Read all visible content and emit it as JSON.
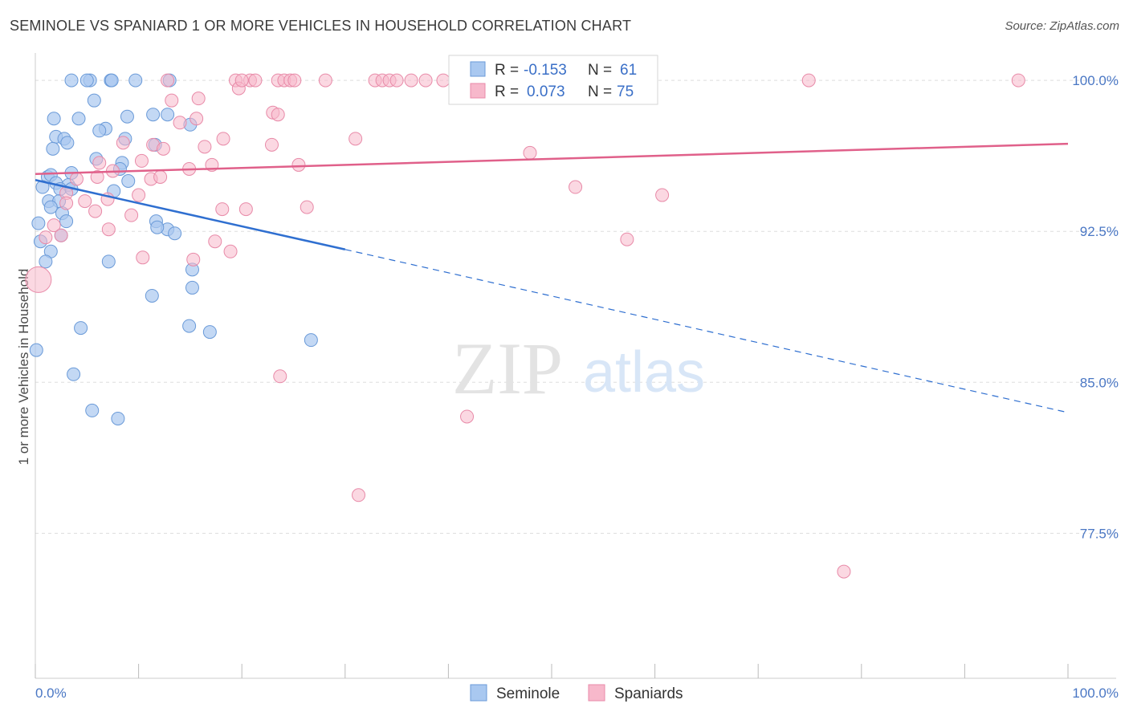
{
  "title": "SEMINOLE VS SPANIARD 1 OR MORE VEHICLES IN HOUSEHOLD CORRELATION CHART",
  "source": "Source: ZipAtlas.com",
  "watermark": {
    "zip": "ZIP",
    "atlas": "atlas"
  },
  "colors": {
    "seminole_fill": "#a9c8f0",
    "seminole_stroke": "#6a9ad8",
    "seminole_line": "#2f6fd0",
    "spaniard_fill": "#f7b8cb",
    "spaniard_stroke": "#e88aa8",
    "spaniard_line": "#e0608a",
    "tick_text": "#4a77c4",
    "grid": "#dddddd"
  },
  "legend": {
    "r_label": "R =",
    "n_label": "N =",
    "rows": [
      {
        "series": "Seminole",
        "r": "-0.153",
        "n": "61"
      },
      {
        "series": "Spaniards",
        "r": "0.073",
        "n": "75"
      }
    ]
  },
  "bottom_legend": [
    "Seminole",
    "Spaniards"
  ],
  "chart_data": {
    "type": "scatter",
    "title": "SEMINOLE VS SPANIARD 1 OR MORE VEHICLES IN HOUSEHOLD CORRELATION CHART",
    "xlabel": "",
    "ylabel": "1 or more Vehicles in Household",
    "xlim": [
      0,
      100
    ],
    "ylim": [
      70.3,
      101.2
    ],
    "x_tick_labels": [
      "0.0%",
      "100.0%"
    ],
    "y_ticks": [
      77.5,
      85.0,
      92.5,
      100.0
    ],
    "y_tick_labels": [
      "77.5%",
      "85.0%",
      "92.5%",
      "100.0%"
    ],
    "series": [
      {
        "name": "Seminole",
        "points": [
          [
            3.5,
            100
          ],
          [
            5.3,
            100
          ],
          [
            5.0,
            100
          ],
          [
            7.3,
            100
          ],
          [
            7.4,
            100
          ],
          [
            9.7,
            100
          ],
          [
            13.0,
            100
          ],
          [
            5.7,
            99.0
          ],
          [
            1.8,
            98.1
          ],
          [
            4.2,
            98.1
          ],
          [
            6.8,
            97.6
          ],
          [
            8.9,
            98.2
          ],
          [
            11.4,
            98.3
          ],
          [
            12.8,
            98.3
          ],
          [
            15.0,
            97.8
          ],
          [
            2.0,
            97.2
          ],
          [
            2.8,
            97.1
          ],
          [
            3.1,
            96.9
          ],
          [
            1.7,
            96.6
          ],
          [
            6.2,
            97.5
          ],
          [
            8.7,
            97.1
          ],
          [
            11.6,
            96.8
          ],
          [
            5.9,
            96.1
          ],
          [
            8.4,
            95.9
          ],
          [
            8.2,
            95.6
          ],
          [
            1.2,
            95.2
          ],
          [
            1.5,
            95.3
          ],
          [
            3.5,
            95.4
          ],
          [
            3.2,
            94.8
          ],
          [
            7.6,
            94.5
          ],
          [
            2.0,
            94.9
          ],
          [
            0.7,
            94.7
          ],
          [
            1.3,
            94.0
          ],
          [
            2.4,
            94.6
          ],
          [
            2.3,
            94.0
          ],
          [
            3.5,
            94.6
          ],
          [
            1.5,
            93.7
          ],
          [
            2.6,
            93.4
          ],
          [
            0.3,
            92.9
          ],
          [
            11.7,
            93.0
          ],
          [
            12.8,
            92.6
          ],
          [
            2.5,
            92.3
          ],
          [
            13.5,
            92.4
          ],
          [
            1.5,
            91.5
          ],
          [
            1.0,
            91.0
          ],
          [
            7.1,
            91.0
          ],
          [
            15.2,
            90.6
          ],
          [
            15.2,
            89.7
          ],
          [
            11.3,
            89.3
          ],
          [
            4.4,
            87.7
          ],
          [
            14.9,
            87.8
          ],
          [
            16.9,
            87.5
          ],
          [
            26.7,
            87.1
          ],
          [
            0.1,
            86.6
          ],
          [
            3.7,
            85.4
          ],
          [
            5.5,
            83.6
          ],
          [
            8.0,
            83.2
          ],
          [
            11.8,
            92.7
          ],
          [
            9.0,
            95.0
          ],
          [
            3.0,
            93.0
          ],
          [
            0.5,
            92.0
          ]
        ],
        "trend": {
          "x0": 0,
          "y0": 95.05,
          "x1_solid": 30,
          "y1_solid": 91.6,
          "x1_dash": 100,
          "y1_dash": 83.5
        }
      },
      {
        "name": "Spaniards",
        "points": [
          [
            12.8,
            100
          ],
          [
            19.4,
            100
          ],
          [
            20.8,
            100
          ],
          [
            21.3,
            100
          ],
          [
            23.5,
            100
          ],
          [
            24.1,
            100
          ],
          [
            24.7,
            100
          ],
          [
            25.1,
            100
          ],
          [
            28.1,
            100
          ],
          [
            32.9,
            100
          ],
          [
            33.6,
            100
          ],
          [
            34.3,
            100
          ],
          [
            36.4,
            100
          ],
          [
            37.8,
            100
          ],
          [
            39.5,
            100
          ],
          [
            41.2,
            100
          ],
          [
            42.8,
            100
          ],
          [
            48.6,
            100
          ],
          [
            55.0,
            100
          ],
          [
            58.9,
            100
          ],
          [
            74.9,
            100
          ],
          [
            95.2,
            100
          ],
          [
            19.7,
            99.6
          ],
          [
            13.2,
            99.0
          ],
          [
            15.8,
            99.1
          ],
          [
            23.0,
            98.4
          ],
          [
            23.5,
            98.3
          ],
          [
            14.0,
            97.9
          ],
          [
            15.6,
            98.1
          ],
          [
            18.2,
            97.1
          ],
          [
            31.0,
            97.1
          ],
          [
            8.5,
            96.9
          ],
          [
            11.4,
            96.8
          ],
          [
            12.4,
            96.6
          ],
          [
            16.4,
            96.7
          ],
          [
            22.9,
            96.8
          ],
          [
            47.9,
            96.4
          ],
          [
            6.2,
            95.9
          ],
          [
            10.3,
            96.0
          ],
          [
            14.9,
            95.6
          ],
          [
            17.1,
            95.8
          ],
          [
            25.5,
            95.8
          ],
          [
            6.0,
            95.2
          ],
          [
            7.5,
            95.5
          ],
          [
            11.2,
            95.1
          ],
          [
            12.1,
            95.2
          ],
          [
            4.0,
            95.1
          ],
          [
            3.0,
            94.4
          ],
          [
            10.0,
            94.3
          ],
          [
            52.3,
            94.7
          ],
          [
            60.7,
            94.3
          ],
          [
            4.8,
            94.0
          ],
          [
            5.8,
            93.5
          ],
          [
            7.0,
            94.1
          ],
          [
            18.1,
            93.6
          ],
          [
            20.4,
            93.6
          ],
          [
            26.3,
            93.7
          ],
          [
            9.3,
            93.3
          ],
          [
            1.8,
            92.8
          ],
          [
            7.1,
            92.6
          ],
          [
            2.5,
            92.3
          ],
          [
            1.0,
            92.2
          ],
          [
            17.4,
            92.0
          ],
          [
            57.3,
            92.1
          ],
          [
            18.9,
            91.5
          ],
          [
            10.4,
            91.2
          ],
          [
            15.3,
            91.1
          ],
          [
            0.3,
            90.1
          ],
          [
            23.7,
            85.3
          ],
          [
            41.8,
            83.3
          ],
          [
            31.3,
            79.4
          ],
          [
            78.3,
            75.6
          ],
          [
            35.0,
            100
          ],
          [
            20.0,
            100
          ],
          [
            3.0,
            93.9
          ]
        ],
        "trend": {
          "x0": 0,
          "y0": 95.35,
          "x1": 100,
          "y1": 96.85
        }
      }
    ]
  }
}
